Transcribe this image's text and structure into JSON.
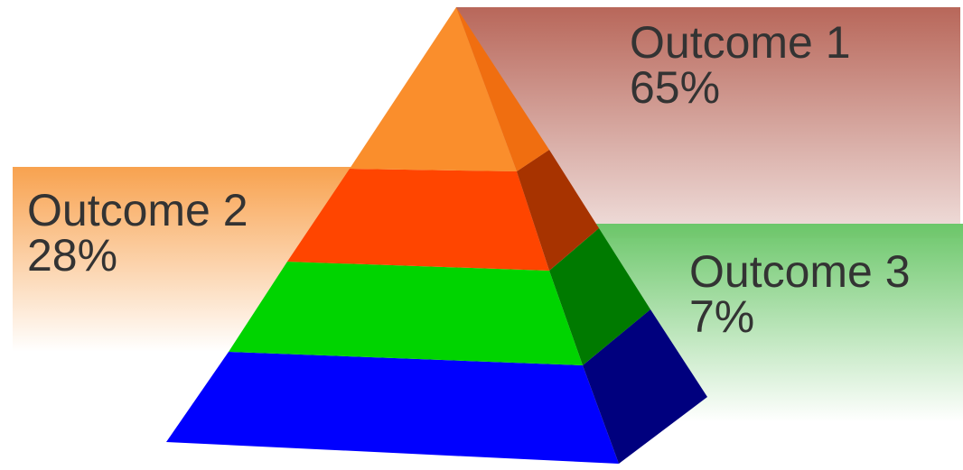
{
  "diagram": {
    "type": "pyramid",
    "callouts": [
      {
        "id": "outcome-1",
        "title": "Outcome 1",
        "value": "65%",
        "color": "#b8675a"
      },
      {
        "id": "outcome-2",
        "title": "Outcome 2",
        "value": "28%",
        "color": "#f8a24f"
      },
      {
        "id": "outcome-3",
        "title": "Outcome 3",
        "value": "7%",
        "color": "#6cc76a"
      }
    ],
    "layers": [
      {
        "name": "top",
        "front": "#fa8e2c",
        "side": "#f06e10"
      },
      {
        "name": "upper-middle",
        "front": "#ff4500",
        "side": "#a73300"
      },
      {
        "name": "lower-middle",
        "front": "#00d400",
        "side": "#007a00"
      },
      {
        "name": "base",
        "front": "#0000ff",
        "side": "#00007e"
      }
    ]
  }
}
